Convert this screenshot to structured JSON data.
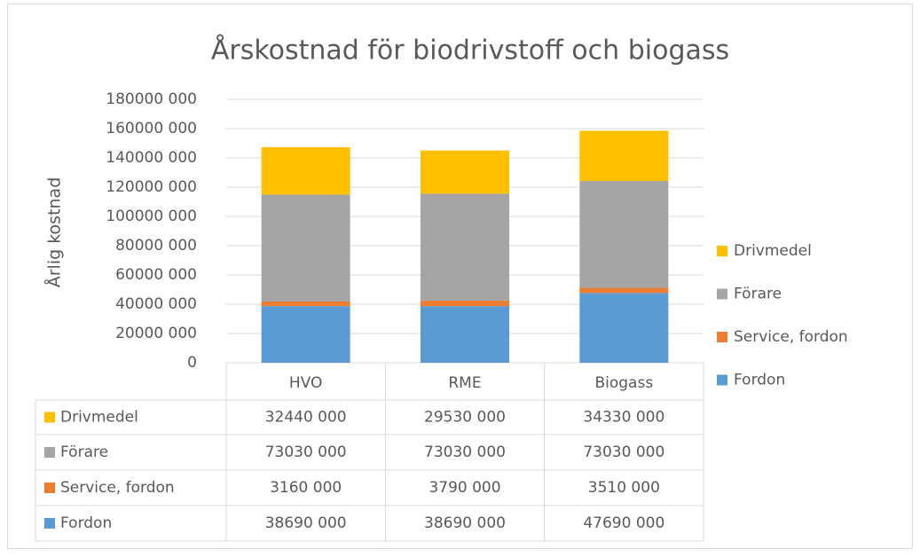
{
  "chart_data": {
    "type": "bar",
    "stacked": true,
    "title": "Årskostnad för biodrivstoff och biogass",
    "y_label": "Årlig kostnad",
    "categories": [
      "HVO",
      "RME",
      "Biogass"
    ],
    "series": [
      {
        "name": "Fordon",
        "color": "#5b9bd5",
        "values": [
          38690000,
          38690000,
          47690000
        ],
        "value_labels": [
          "38690 000",
          "38690 000",
          "47690 000"
        ]
      },
      {
        "name": "Service, fordon",
        "color": "#ed7d31",
        "values": [
          3160000,
          3790000,
          3510000
        ],
        "value_labels": [
          "3160 000",
          "3790 000",
          "3510 000"
        ]
      },
      {
        "name": "Förare",
        "color": "#a5a5a5",
        "values": [
          73030000,
          73030000,
          73030000
        ],
        "value_labels": [
          "73030 000",
          "73030 000",
          "73030 000"
        ]
      },
      {
        "name": "Drivmedel",
        "color": "#ffc000",
        "values": [
          32440000,
          29530000,
          34330000
        ],
        "value_labels": [
          "32440 000",
          "29530 000",
          "34330 000"
        ]
      }
    ],
    "ylim": [
      0,
      180000000
    ],
    "yticks": [
      0,
      {
        "value": 20000000,
        "label": "20000 000"
      },
      {
        "value": 40000000,
        "label": "40000 000"
      },
      {
        "value": 60000000,
        "label": "60000 000"
      },
      {
        "value": 80000000,
        "label": "80000 000"
      },
      {
        "value": 100000000,
        "label": "100000 000"
      },
      {
        "value": 120000000,
        "label": "120000 000"
      },
      {
        "value": 140000000,
        "label": "140000 000"
      },
      {
        "value": 160000000,
        "label": "160000 000"
      },
      {
        "value": 180000000,
        "label": "180000 000"
      }
    ],
    "grid": true,
    "legend": "right",
    "data_table": true
  }
}
